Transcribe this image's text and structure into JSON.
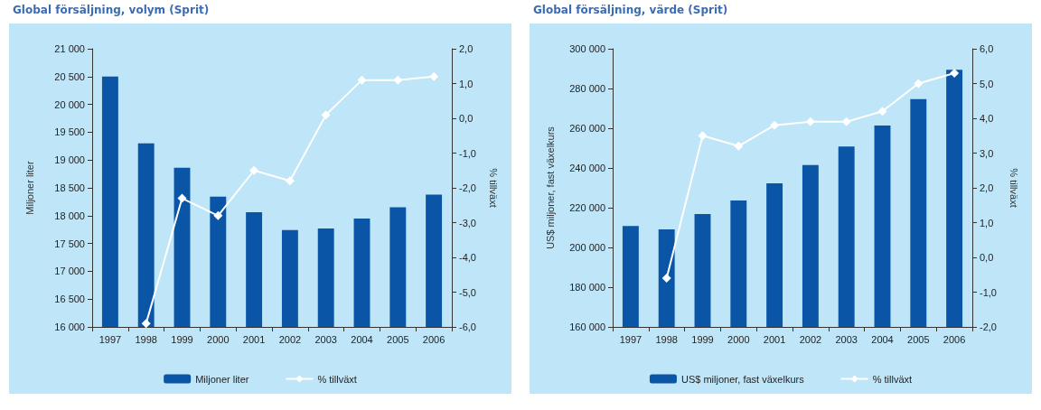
{
  "chart_data": [
    {
      "type": "bar",
      "title": "Global försäljning, volym (Sprit)",
      "ylabel": "Miljoner liter",
      "y2label": "% tillväxt",
      "categories": [
        "1997",
        "1998",
        "1999",
        "2000",
        "2001",
        "2002",
        "2003",
        "2004",
        "2005",
        "2006"
      ],
      "series": [
        {
          "name": "Miljoner liter",
          "color": "#0b55a6",
          "values": [
            20500,
            19300,
            18860,
            18340,
            18060,
            17740,
            17770,
            17950,
            18150,
            18380
          ]
        },
        {
          "name": "% tillväxt",
          "type": "line",
          "axis": "y2",
          "color": "#ffffff",
          "values": [
            null,
            -5.9,
            -2.3,
            -2.8,
            -1.5,
            -1.8,
            0.1,
            1.1,
            1.1,
            1.2
          ]
        }
      ],
      "ylim": [
        16000,
        21000
      ],
      "yticks": [
        {
          "value": 16000,
          "label": "16 000"
        },
        {
          "value": 16500,
          "label": "16 500"
        },
        {
          "value": 17000,
          "label": "17 000"
        },
        {
          "value": 17500,
          "label": "17 500"
        },
        {
          "value": 18000,
          "label": "18 000"
        },
        {
          "value": 18500,
          "label": "18 500"
        },
        {
          "value": 19000,
          "label": "19 000"
        },
        {
          "value": 19500,
          "label": "19 500"
        },
        {
          "value": 20000,
          "label": "20 000"
        },
        {
          "value": 20500,
          "label": "20 500"
        },
        {
          "value": 21000,
          "label": "21 000"
        }
      ],
      "y2lim": [
        -6,
        2
      ],
      "y2ticks": [
        {
          "value": -6,
          "label": "-6,0"
        },
        {
          "value": -5,
          "label": "-5,0"
        },
        {
          "value": -4,
          "label": "-4,0"
        },
        {
          "value": -3,
          "label": "-3,0"
        },
        {
          "value": -2,
          "label": "-2,0"
        },
        {
          "value": -1,
          "label": "-1,0"
        },
        {
          "value": 0,
          "label": "0,0"
        },
        {
          "value": 1,
          "label": "1,0"
        },
        {
          "value": 2,
          "label": "2,0"
        }
      ],
      "marker": "diamond",
      "legend": "bottom",
      "grid": false
    },
    {
      "type": "bar",
      "title": "Global försäljning, värde (Sprit)",
      "ylabel": "US$ miljoner, fast växelkurs",
      "y2label": "% tillväxt",
      "categories": [
        "1997",
        "1998",
        "1999",
        "2000",
        "2001",
        "2002",
        "2003",
        "2004",
        "2005",
        "2006"
      ],
      "series": [
        {
          "name": "US$ miljoner, fast växelkurs",
          "color": "#0b55a6",
          "values": [
            210800,
            209100,
            216800,
            223600,
            232300,
            241500,
            250800,
            261400,
            274700,
            289400
          ]
        },
        {
          "name": "% tillväxt",
          "type": "line",
          "axis": "y2",
          "color": "#ffffff",
          "values": [
            null,
            -0.6,
            3.5,
            3.2,
            3.8,
            3.9,
            3.9,
            4.2,
            5.0,
            5.3
          ]
        }
      ],
      "ylim": [
        160000,
        300000
      ],
      "yticks": [
        {
          "value": 160000,
          "label": "160 000"
        },
        {
          "value": 180000,
          "label": "180 000"
        },
        {
          "value": 200000,
          "label": "200 000"
        },
        {
          "value": 220000,
          "label": "220 000"
        },
        {
          "value": 240000,
          "label": "240 000"
        },
        {
          "value": 260000,
          "label": "260 000"
        },
        {
          "value": 280000,
          "label": "280 000"
        },
        {
          "value": 300000,
          "label": "300 000"
        }
      ],
      "y2lim": [
        -2,
        6
      ],
      "y2ticks": [
        {
          "value": -2,
          "label": "-2,0"
        },
        {
          "value": -1,
          "label": "-1,0"
        },
        {
          "value": 0,
          "label": "0,0"
        },
        {
          "value": 1,
          "label": "1,0"
        },
        {
          "value": 2,
          "label": "2,0"
        },
        {
          "value": 3,
          "label": "3,0"
        },
        {
          "value": 4,
          "label": "4,0"
        },
        {
          "value": 5,
          "label": "5,0"
        },
        {
          "value": 6,
          "label": "6,0"
        }
      ],
      "marker": "diamond",
      "legend": "bottom",
      "grid": false
    }
  ]
}
